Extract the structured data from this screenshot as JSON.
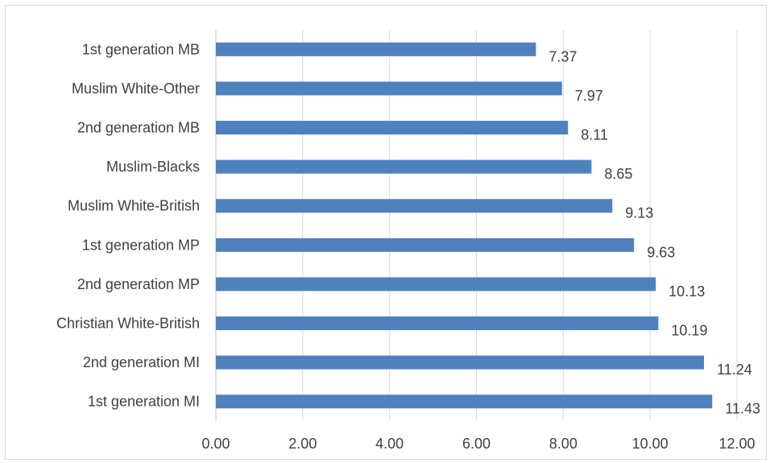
{
  "chart_data": {
    "type": "bar",
    "orientation": "horizontal",
    "title": "",
    "xlabel": "",
    "ylabel": "",
    "categories": [
      "1st generation MB",
      "Muslim White-Other",
      "2nd generation MB",
      "Muslim-Blacks",
      "Muslim White-British",
      "1st generation MP",
      "2nd generation MP",
      "Christian White-British",
      "2nd generation MI",
      "1st generation MI"
    ],
    "values": [
      7.37,
      7.97,
      8.11,
      8.65,
      9.13,
      9.63,
      10.13,
      10.19,
      11.24,
      11.43
    ],
    "data_labels": [
      "7.37",
      "7.97",
      "8.11",
      "8.65",
      "9.13",
      "9.63",
      "10.13",
      "10.19",
      "11.24",
      "11.43"
    ],
    "xlim": [
      0,
      12
    ],
    "x_ticks": [
      0,
      2,
      4,
      6,
      8,
      10,
      12
    ],
    "x_tick_labels": [
      "0.00",
      "2.00",
      "4.00",
      "6.00",
      "8.00",
      "10.00",
      "12.00"
    ],
    "grid": "vertical",
    "legend": "none",
    "bar_color": "#4f81bd",
    "grid_color": "#d9d9d9"
  }
}
